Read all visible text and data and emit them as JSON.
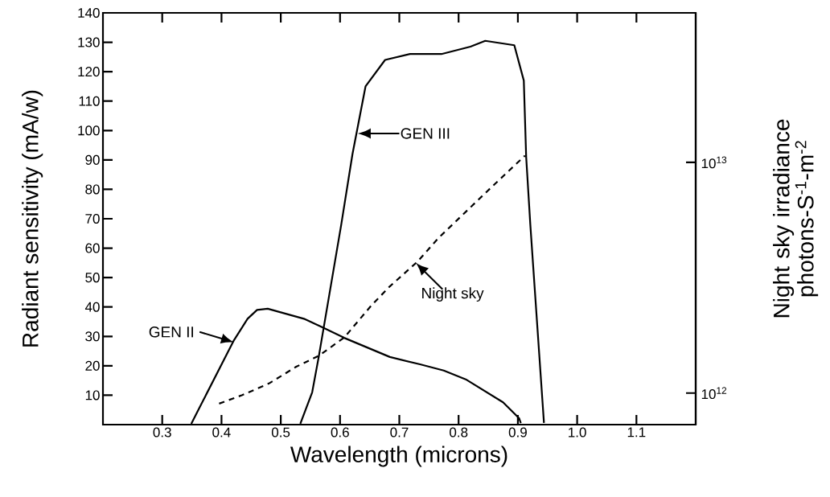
{
  "chart_data": {
    "type": "line",
    "xlabel": "Wavelength (microns)",
    "ylabel": "Radiant sensitivity (mA/w)",
    "y2label": "Night sky irradiance photons-S$^{-1}$-m$^{-2}$",
    "xlim": [
      0.2,
      1.2
    ],
    "xticks": [
      0.3,
      0.4,
      0.5,
      0.6,
      0.7,
      0.8,
      0.9,
      {
        "value": 1.0,
        "label": "1.0"
      },
      1.1
    ],
    "ylim": [
      0,
      140
    ],
    "yticks": [
      10,
      20,
      30,
      40,
      50,
      60,
      70,
      80,
      90,
      100,
      110,
      120,
      130,
      140
    ],
    "y2lim": [
      730000000000.0,
      44500000000000.0
    ],
    "y2ticks": [
      {
        "value": 1000000000000.0,
        "label": "10$^{12}$"
      },
      {
        "value": 10000000000000.0,
        "label": "10$^{13}$"
      }
    ],
    "log": "y2",
    "grid": false,
    "marker": "none",
    "series": [
      {
        "color": "#000000",
        "line_style": "solid",
        "x": [
          0.533,
          0.553,
          0.564,
          0.602,
          0.621,
          0.643,
          0.676,
          0.718,
          0.771,
          0.82,
          0.845,
          0.894,
          0.91,
          0.914,
          0.921,
          0.944
        ],
        "values": [
          0.3,
          11,
          23,
          68,
          92,
          115,
          124,
          126,
          126,
          128.5,
          130.5,
          129,
          117,
          91,
          68,
          0.6
        ]
      },
      {
        "color": "#000000",
        "line_style": "solid",
        "x": [
          0.349,
          0.421,
          0.444,
          0.46,
          0.478,
          0.539,
          0.571,
          0.607,
          0.684,
          0.735,
          0.775,
          0.812,
          0.875,
          0.902,
          0.905
        ],
        "values": [
          0.3,
          28.7,
          36,
          39,
          39.4,
          36,
          33,
          29.5,
          23,
          20.5,
          18.4,
          15.4,
          7.6,
          2.2,
          0.5
        ]
      },
      {
        "color": "#000000",
        "line_style": "dashed",
        "axis": "y2",
        "x": [
          0.396,
          0.435,
          0.48,
          0.526,
          0.564,
          0.607,
          0.653,
          0.684,
          0.73,
          0.766,
          0.846,
          0.912
        ],
        "values": [
          900000000000.0,
          980000000000.0,
          1100000000000.0,
          1300000000000.0,
          1450000000000.0,
          1740000000000.0,
          2400000000000.0,
          2900000000000.0,
          3700000000000.0,
          4700000000000.0,
          7400000000000.0,
          10700000000000.0
        ]
      }
    ],
    "annotations": [
      {
        "text": "GEN III",
        "x": 0.63,
        "y": 99
      },
      {
        "text": "GEN II",
        "x": 0.421,
        "y": 28
      },
      {
        "text": "Night sky",
        "x": 0.728,
        "y": 55
      }
    ]
  }
}
